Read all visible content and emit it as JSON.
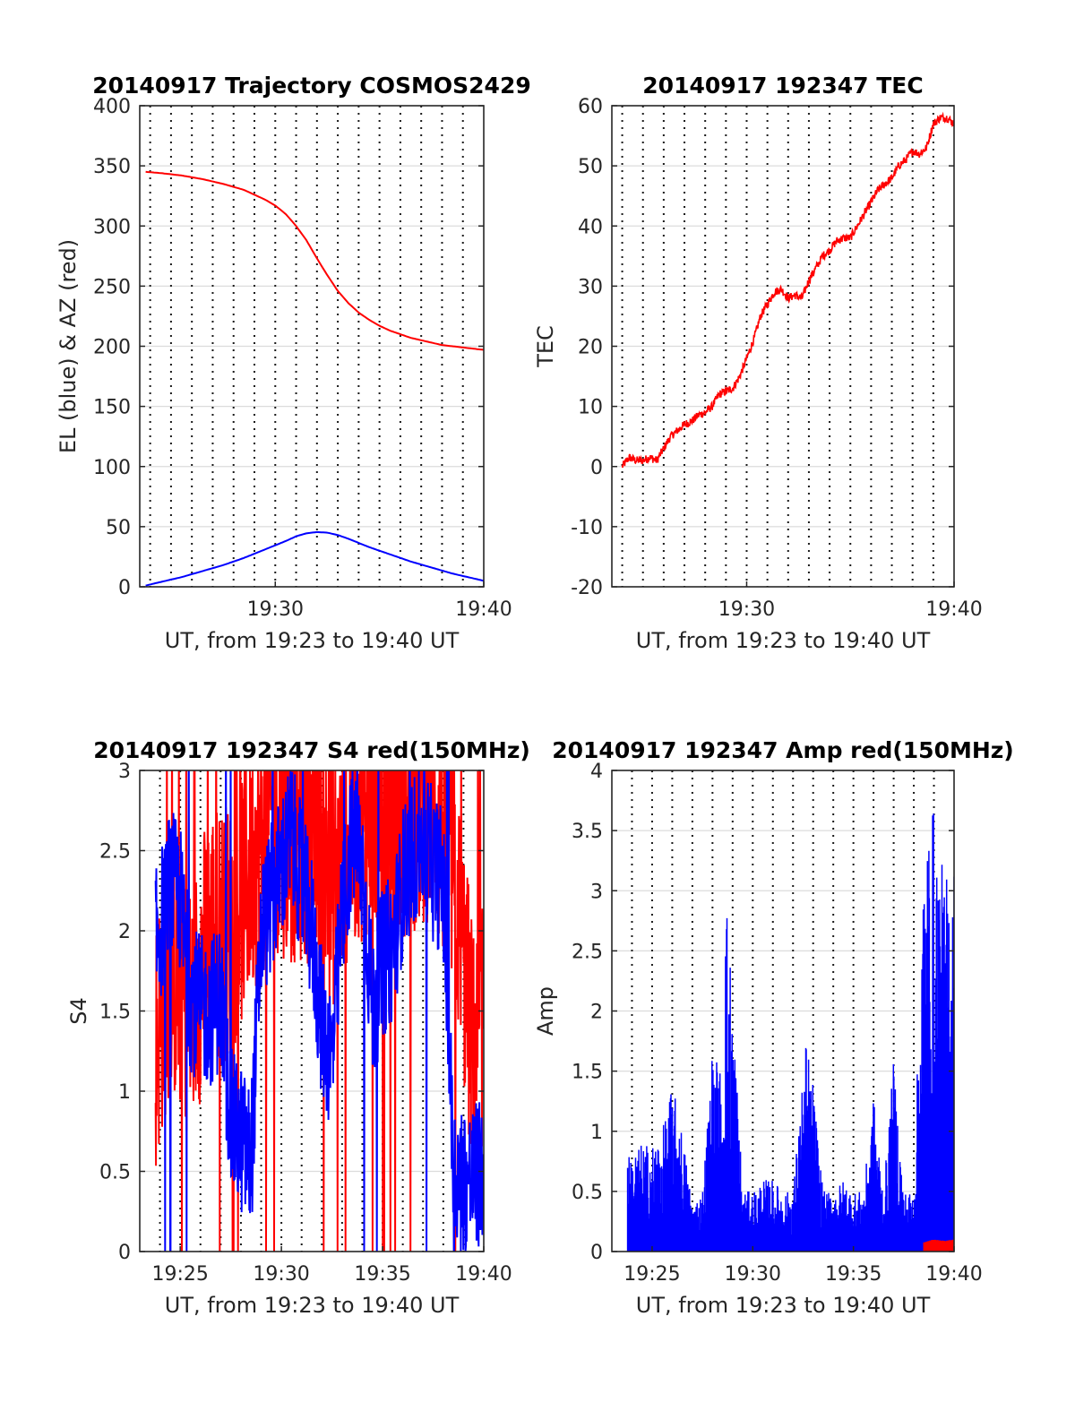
{
  "colors": {
    "red": "#ff0000",
    "blue": "#0000ff",
    "text": "#262626"
  },
  "chart_data": [
    {
      "type": "line",
      "title": "20140917 Trajectory COSMOS2429",
      "ylabel": "EL (blue) & AZ (red)",
      "xlabel": "UT, from 19:23 to 19:40 UT",
      "xlim": [
        "19:23:30",
        "19:40:00"
      ],
      "ylim": [
        0,
        400
      ],
      "yticks": [
        0,
        50,
        100,
        150,
        200,
        250,
        300,
        350,
        400
      ],
      "xticks": [
        {
          "t": "19:30:00",
          "label": "19:30"
        },
        {
          "t": "19:40:00",
          "label": "19:40"
        }
      ],
      "grid": true,
      "series": [
        {
          "color": "red",
          "smooth": true,
          "x": [
            "19:23:47",
            "19:24:30",
            "19:25:30",
            "19:26:30",
            "19:27:30",
            "19:28:30",
            "19:29:30",
            "19:30:00",
            "19:30:30",
            "19:31:00",
            "19:31:30",
            "19:32:00",
            "19:32:30",
            "19:33:00",
            "19:33:30",
            "19:34:00",
            "19:34:30",
            "19:35:00",
            "19:35:30",
            "19:36:00",
            "19:36:30",
            "19:37:00",
            "19:37:30",
            "19:38:00",
            "19:38:30",
            "19:39:00",
            "19:39:30",
            "19:40:00"
          ],
          "y": [
            345,
            344,
            342,
            339,
            335,
            330,
            322,
            317,
            310,
            300,
            288,
            273,
            259,
            246,
            236,
            228,
            222,
            217,
            213,
            210,
            207,
            205,
            203,
            201,
            200,
            199,
            198,
            197
          ]
        },
        {
          "color": "blue",
          "smooth": true,
          "x": [
            "19:23:47",
            "19:24:30",
            "19:25:30",
            "19:26:30",
            "19:27:30",
            "19:28:30",
            "19:29:30",
            "19:30:30",
            "19:31:00",
            "19:31:30",
            "19:32:00",
            "19:32:30",
            "19:33:00",
            "19:33:30",
            "19:34:00",
            "19:34:30",
            "19:35:30",
            "19:36:30",
            "19:37:30",
            "19:38:30",
            "19:39:30",
            "19:40:00"
          ],
          "y": [
            1,
            4,
            8,
            13,
            18,
            24,
            31,
            38,
            42,
            44.5,
            45.5,
            45,
            43,
            40,
            36.5,
            33,
            27,
            21,
            16,
            11,
            7,
            5
          ]
        }
      ]
    },
    {
      "type": "line",
      "title": "20140917 192347 TEC",
      "ylabel": "TEC",
      "xlabel": "UT, from 19:23 to 19:40 UT",
      "xlim": [
        "19:23:30",
        "19:40:00"
      ],
      "ylim": [
        -20,
        60
      ],
      "yticks": [
        -20,
        -10,
        0,
        10,
        20,
        30,
        40,
        50,
        60
      ],
      "xticks": [
        {
          "t": "19:30:00",
          "label": "19:30"
        },
        {
          "t": "19:40:00",
          "label": "19:40"
        }
      ],
      "grid": true,
      "series": [
        {
          "color": "red",
          "noise": 0.7,
          "x": [
            "19:24:00",
            "19:24:20",
            "19:24:40",
            "19:25:00",
            "19:25:20",
            "19:25:40",
            "19:26:00",
            "19:26:20",
            "19:26:40",
            "19:27:00",
            "19:27:20",
            "19:27:40",
            "19:28:00",
            "19:28:20",
            "19:28:40",
            "19:29:00",
            "19:29:20",
            "19:29:40",
            "19:30:00",
            "19:30:20",
            "19:30:40",
            "19:31:00",
            "19:31:20",
            "19:31:40",
            "19:32:00",
            "19:32:20",
            "19:32:40",
            "19:33:00",
            "19:33:20",
            "19:33:40",
            "19:34:00",
            "19:34:20",
            "19:34:40",
            "19:35:00",
            "19:35:20",
            "19:35:40",
            "19:36:00",
            "19:36:20",
            "19:36:40",
            "19:37:00",
            "19:37:20",
            "19:37:40",
            "19:38:00",
            "19:38:20",
            "19:38:40",
            "19:39:00",
            "19:39:20",
            "19:39:40",
            "19:40:00"
          ],
          "y": [
            0,
            1.5,
            1,
            1,
            1.5,
            1,
            3,
            5,
            6,
            7,
            7.5,
            8.5,
            9,
            10,
            12,
            12.5,
            13,
            15,
            18,
            21,
            25,
            27,
            29,
            29.5,
            28,
            28.5,
            28,
            31,
            33,
            35,
            36,
            37.5,
            38,
            38,
            40,
            42,
            44,
            46,
            47,
            48,
            50,
            51,
            52.5,
            52,
            53,
            57,
            58,
            58,
            57
          ]
        }
      ]
    },
    {
      "type": "line",
      "title": "20140917 192347 S4 red(150MHz)",
      "ylabel": "S4",
      "xlabel": "UT, from 19:23 to 19:40 UT",
      "xlim": [
        "19:23:00",
        "19:40:00"
      ],
      "ylim": [
        0,
        3
      ],
      "yticks": [
        0,
        0.5,
        1,
        1.5,
        2,
        2.5,
        3
      ],
      "xticks": [
        {
          "t": "19:25:00",
          "label": "19:25"
        },
        {
          "t": "19:30:00",
          "label": "19:30"
        },
        {
          "t": "19:35:00",
          "label": "19:35"
        },
        {
          "t": "19:40:00",
          "label": "19:40"
        }
      ],
      "grid": true,
      "series": [
        {
          "color": "red",
          "noise": 0.6,
          "x0": "19:23:47",
          "x1": "19:40:00",
          "x": [
            "19:23:47",
            "19:24:30",
            "19:25:30",
            "19:26:30",
            "19:27:30",
            "19:28:30",
            "19:29:30",
            "19:30:30",
            "19:31:30",
            "19:32:30",
            "19:33:30",
            "19:34:30",
            "19:35:30",
            "19:36:30",
            "19:37:30",
            "19:38:30",
            "19:39:30",
            "19:40:00"
          ],
          "y": [
            1.3,
            1.8,
            1.5,
            2.0,
            2.0,
            2.4,
            2.7,
            2.6,
            2.6,
            2.3,
            2.7,
            2.8,
            2.7,
            2.8,
            2.8,
            2.4,
            1.2,
            1.5
          ]
        },
        {
          "color": "blue",
          "noise": 0.35,
          "x0": "19:23:47",
          "x1": "19:40:00",
          "x": [
            "19:23:47",
            "19:24:30",
            "19:25:00",
            "19:25:30",
            "19:26:00",
            "19:26:30",
            "19:27:00",
            "19:27:30",
            "19:28:00",
            "19:28:30",
            "19:29:00",
            "19:29:30",
            "19:30:00",
            "19:30:30",
            "19:31:00",
            "19:31:30",
            "19:32:00",
            "19:32:30",
            "19:33:00",
            "19:33:30",
            "19:34:00",
            "19:34:30",
            "19:35:00",
            "19:35:30",
            "19:36:00",
            "19:36:30",
            "19:37:00",
            "19:37:30",
            "19:38:00",
            "19:38:30",
            "19:39:00",
            "19:39:30",
            "19:40:00"
          ],
          "y": [
            1.9,
            2.3,
            2.2,
            1.6,
            1.5,
            1.5,
            1.6,
            0.8,
            0.7,
            0.55,
            2.0,
            2.2,
            2.4,
            2.6,
            2.3,
            2.0,
            1.4,
            1.2,
            2.1,
            2.6,
            2.4,
            1.5,
            1.8,
            1.9,
            2.3,
            2.5,
            2.6,
            2.4,
            2.3,
            0.5,
            0.45,
            0.45,
            0.5
          ]
        }
      ]
    },
    {
      "type": "line",
      "title": "20140917 192347 Amp red(150MHz)",
      "ylabel": "Amp",
      "xlabel": "UT, from 19:23 to 19:40 UT",
      "xlim": [
        "19:23:00",
        "19:40:00"
      ],
      "ylim": [
        0,
        4
      ],
      "yticks": [
        0,
        0.5,
        1,
        1.5,
        2,
        2.5,
        3,
        3.5,
        4
      ],
      "xticks": [
        {
          "t": "19:25:00",
          "label": "19:25"
        },
        {
          "t": "19:30:00",
          "label": "19:30"
        },
        {
          "t": "19:35:00",
          "label": "19:35"
        },
        {
          "t": "19:40:00",
          "label": "19:40"
        }
      ],
      "grid": true,
      "series": [
        {
          "color": "blue",
          "filled": true,
          "x0": "19:23:47",
          "x1": "19:40:00",
          "x": [
            "19:23:47",
            "19:24:30",
            "19:25:00",
            "19:25:30",
            "19:26:00",
            "19:26:30",
            "19:27:00",
            "19:27:30",
            "19:28:00",
            "19:28:30",
            "19:28:40",
            "19:29:00",
            "19:29:30",
            "19:30:00",
            "19:30:30",
            "19:31:00",
            "19:31:30",
            "19:32:00",
            "19:32:30",
            "19:32:40",
            "19:33:00",
            "19:33:30",
            "19:34:00",
            "19:34:30",
            "19:35:00",
            "19:35:30",
            "19:36:00",
            "19:36:30",
            "19:37:00",
            "19:37:30",
            "19:38:00",
            "19:38:30",
            "19:39:00",
            "19:39:30",
            "19:40:00"
          ],
          "y": [
            0.8,
            0.9,
            0.9,
            1.0,
            1.4,
            1.0,
            0.4,
            0.5,
            1.7,
            1.5,
            3.05,
            2.2,
            0.5,
            0.5,
            0.6,
            0.6,
            0.5,
            0.5,
            1.5,
            1.8,
            1.4,
            0.5,
            0.5,
            0.6,
            0.5,
            0.5,
            1.3,
            0.5,
            1.6,
            0.5,
            0.5,
            3.4,
            3.75,
            3.1,
            3.4
          ]
        },
        {
          "color": "red",
          "filled": true,
          "x0": "19:38:30",
          "x1": "19:40:00",
          "x": [
            "19:38:30",
            "19:39:00",
            "19:39:30",
            "19:40:00"
          ],
          "y": [
            0.08,
            0.1,
            0.09,
            0.1
          ]
        }
      ]
    }
  ]
}
